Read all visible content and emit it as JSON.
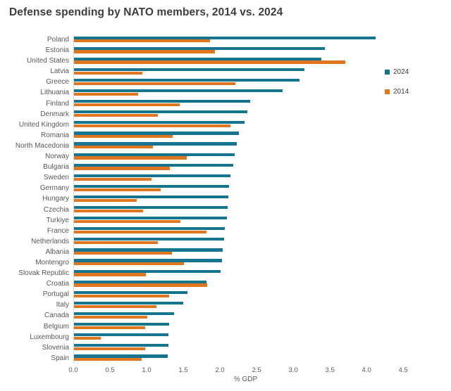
{
  "title": "Defense spending by NATO members, 2014 vs. 2024",
  "axis": {
    "label": "% GDP",
    "ticks": [
      "0.0",
      "0.5",
      "1.0",
      "1.5",
      "2.0",
      "2.5",
      "3.0",
      "3.5",
      "4.0",
      "4.5"
    ]
  },
  "colors": {
    "series_2024": "#177491",
    "series_2014": "#e0761f",
    "title_text": "#3d3d3d",
    "axis_text": "#595959",
    "axis_line": "#d9d9d9",
    "background": "#ffffff"
  },
  "legend": {
    "items": [
      {
        "label": "2024",
        "color": "#177491"
      },
      {
        "label": "2014",
        "color": "#e0761f"
      }
    ]
  },
  "chart_data": {
    "type": "bar",
    "orientation": "horizontal",
    "title": "Defense spending by NATO members, 2014 vs. 2024",
    "xlabel": "% GDP",
    "xlim": [
      0,
      4.7
    ],
    "grid": false,
    "legend_position": "right",
    "categories": [
      "Poland",
      "Estonia",
      "United States",
      "Latvia",
      "Greece",
      "Lithuania",
      "Finland",
      "Denmark",
      "United Kingdom",
      "Romania",
      "North Macedonia",
      "Norway",
      "Bulgaria",
      "Sweden",
      "Germany",
      "Hungary",
      "Czechia",
      "Turkiye",
      "France",
      "Netherlands",
      "Albania",
      "Montengro",
      "Slovak Republic",
      "Croatia",
      "Portugal",
      "Italy",
      "Canada",
      "Belgium",
      "Luxembourg",
      "Slovenia",
      "Spain"
    ],
    "series": [
      {
        "name": "2024",
        "color": "#177491",
        "values": [
          4.12,
          3.43,
          3.38,
          3.15,
          3.08,
          2.85,
          2.41,
          2.37,
          2.33,
          2.25,
          2.22,
          2.2,
          2.18,
          2.14,
          2.12,
          2.11,
          2.1,
          2.09,
          2.06,
          2.05,
          2.03,
          2.02,
          2.0,
          1.81,
          1.55,
          1.49,
          1.37,
          1.3,
          1.29,
          1.29,
          1.28
        ]
      },
      {
        "name": "2014",
        "color": "#e0761f",
        "values": [
          1.86,
          1.93,
          3.71,
          0.93,
          2.21,
          0.88,
          1.44,
          1.15,
          2.14,
          1.35,
          1.08,
          1.54,
          1.31,
          1.06,
          1.18,
          0.86,
          0.94,
          1.45,
          1.81,
          1.15,
          1.34,
          1.5,
          0.98,
          1.82,
          1.3,
          1.13,
          1.0,
          0.97,
          0.37,
          0.97,
          0.92
        ]
      }
    ]
  }
}
